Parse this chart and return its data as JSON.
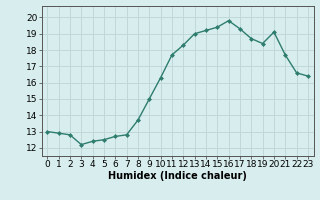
{
  "x": [
    0,
    1,
    2,
    3,
    4,
    5,
    6,
    7,
    8,
    9,
    10,
    11,
    12,
    13,
    14,
    15,
    16,
    17,
    18,
    19,
    20,
    21,
    22,
    23
  ],
  "y": [
    13.0,
    12.9,
    12.8,
    12.2,
    12.4,
    12.5,
    12.7,
    12.8,
    13.7,
    15.0,
    16.3,
    17.7,
    18.3,
    19.0,
    19.2,
    19.4,
    19.8,
    19.3,
    18.7,
    18.4,
    19.1,
    17.7,
    16.6,
    16.4
  ],
  "line_color": "#2e7d6e",
  "marker": "D",
  "marker_size": 2.0,
  "line_width": 1.0,
  "bg_color": "#d8eeee",
  "grid_color": "#c0d8d8",
  "xlabel": "Humidex (Indice chaleur)",
  "ylim": [
    11.5,
    20.7
  ],
  "yticks": [
    12,
    13,
    14,
    15,
    16,
    17,
    18,
    19,
    20
  ],
  "font_size": 6.5
}
